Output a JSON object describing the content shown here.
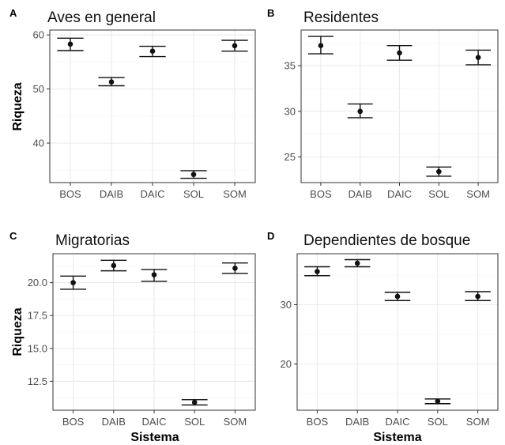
{
  "chart_data": [
    {
      "panel": "A",
      "title": "Aves en general",
      "type": "scatter",
      "categories": [
        "BOS",
        "DAIB",
        "DAIC",
        "SOL",
        "SOM"
      ],
      "values": [
        58.3,
        51.3,
        57.0,
        34.2,
        58.0
      ],
      "lower": [
        57.1,
        50.6,
        56.0,
        33.5,
        57.0
      ],
      "upper": [
        59.4,
        52.1,
        57.9,
        34.9,
        59.0
      ],
      "yticks": [
        "40",
        "50",
        "60"
      ],
      "ylim": [
        32.7,
        60.9
      ],
      "xlabel": "",
      "ylabel": "Riqueza"
    },
    {
      "panel": "B",
      "title": "Residentes",
      "type": "scatter",
      "categories": [
        "BOS",
        "DAIB",
        "DAIC",
        "SOL",
        "SOM"
      ],
      "values": [
        37.2,
        30.0,
        36.4,
        23.4,
        35.9
      ],
      "lower": [
        36.3,
        29.3,
        35.6,
        22.9,
        35.1
      ],
      "upper": [
        38.2,
        30.8,
        37.2,
        23.9,
        36.7
      ],
      "yticks": [
        "25",
        "30",
        "35"
      ],
      "ylim": [
        22.2,
        38.9
      ],
      "xlabel": "",
      "ylabel": ""
    },
    {
      "panel": "C",
      "title": "Migratorias",
      "type": "scatter",
      "categories": [
        "BOS",
        "DAIB",
        "DAIC",
        "SOL",
        "SOM"
      ],
      "values": [
        20.0,
        21.3,
        20.6,
        10.9,
        21.1
      ],
      "lower": [
        19.5,
        20.9,
        20.1,
        10.7,
        20.7
      ],
      "upper": [
        20.5,
        21.7,
        21.0,
        11.1,
        21.5
      ],
      "yticks": [
        "12.5",
        "15.0",
        "17.5",
        "20.0"
      ],
      "ylim": [
        10.3,
        22.2
      ],
      "xlabel": "Sistema",
      "ylabel": "Riqueza"
    },
    {
      "panel": "D",
      "title": "Dependientes de bosque",
      "type": "scatter",
      "categories": [
        "BOS",
        "DAIB",
        "DAIC",
        "SOL",
        "SOM"
      ],
      "values": [
        35.6,
        37.0,
        31.4,
        13.7,
        31.4
      ],
      "lower": [
        34.9,
        36.4,
        30.7,
        13.3,
        30.7
      ],
      "upper": [
        36.4,
        37.6,
        32.1,
        14.1,
        32.2
      ],
      "yticks": [
        "20",
        "30"
      ],
      "ylim": [
        12.2,
        38.6
      ],
      "xlabel": "Sistema",
      "ylabel": ""
    }
  ]
}
